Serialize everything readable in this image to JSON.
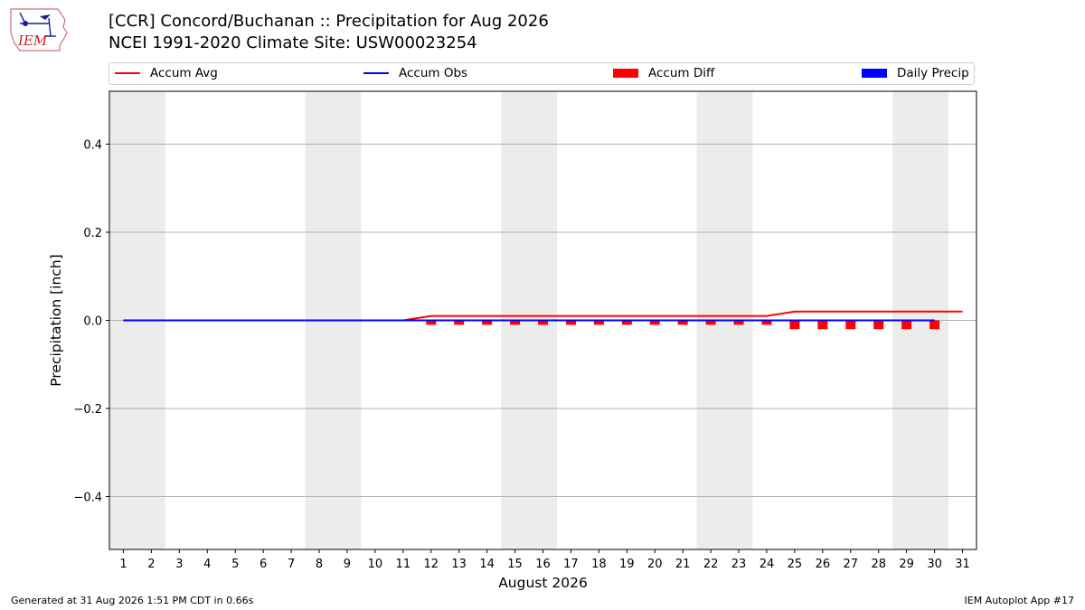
{
  "header": {
    "title_line1": "[CCR] Concord/Buchanan :: Precipitation for Aug 2026",
    "title_line2": "NCEI 1991-2020 Climate Site: USW00023254",
    "logo_text": "IEM"
  },
  "footer": {
    "left": "Generated at 31 Aug 2026 1:51 PM CDT in 0.66s",
    "right": "IEM Autoplot App #17"
  },
  "colors": {
    "accum_avg": "#ff0000",
    "accum_obs": "#0000ff",
    "accum_diff": "#ff0000",
    "daily_precip": "#0000ff",
    "weekend_shade": "#ececec",
    "grid": "#b0b0b0"
  },
  "chart_data": {
    "type": "line",
    "title": "[CCR] Concord/Buchanan :: Precipitation for Aug 2026",
    "subtitle": "NCEI 1991-2020 Climate Site: USW00023254",
    "xlabel": "August 2026",
    "ylabel": "Precipitation [inch]",
    "xlim": [
      0.5,
      31.5
    ],
    "ylim": [
      -0.52,
      0.52
    ],
    "yticks": [
      -0.4,
      -0.2,
      0.0,
      0.2,
      0.4
    ],
    "ytick_labels": [
      "−0.4",
      "−0.2",
      "0.0",
      "0.2",
      "0.4"
    ],
    "x": [
      1,
      2,
      3,
      4,
      5,
      6,
      7,
      8,
      9,
      10,
      11,
      12,
      13,
      14,
      15,
      16,
      17,
      18,
      19,
      20,
      21,
      22,
      23,
      24,
      25,
      26,
      27,
      28,
      29,
      30,
      31
    ],
    "weekend_spans": [
      [
        0.5,
        2.5
      ],
      [
        7.5,
        9.5
      ],
      [
        14.5,
        16.5
      ],
      [
        21.5,
        23.5
      ],
      [
        28.5,
        30.5
      ]
    ],
    "grid": "horizontal",
    "legend_position": "top",
    "legend": [
      "Accum Avg",
      "Accum Obs",
      "Accum Diff",
      "Daily Precip"
    ],
    "series": [
      {
        "name": "Accum Avg",
        "kind": "line",
        "x": [
          1,
          2,
          3,
          4,
          5,
          6,
          7,
          8,
          9,
          10,
          11,
          12,
          13,
          14,
          15,
          16,
          17,
          18,
          19,
          20,
          21,
          22,
          23,
          24,
          25,
          26,
          27,
          28,
          29,
          30,
          31
        ],
        "values": [
          0,
          0,
          0,
          0,
          0,
          0,
          0,
          0,
          0,
          0,
          0,
          0.01,
          0.01,
          0.01,
          0.01,
          0.01,
          0.01,
          0.01,
          0.01,
          0.01,
          0.01,
          0.01,
          0.01,
          0.01,
          0.02,
          0.02,
          0.02,
          0.02,
          0.02,
          0.02,
          0.02
        ]
      },
      {
        "name": "Accum Obs",
        "kind": "line",
        "x": [
          1,
          2,
          3,
          4,
          5,
          6,
          7,
          8,
          9,
          10,
          11,
          12,
          13,
          14,
          15,
          16,
          17,
          18,
          19,
          20,
          21,
          22,
          23,
          24,
          25,
          26,
          27,
          28,
          29,
          30
        ],
        "values": [
          0,
          0,
          0,
          0,
          0,
          0,
          0,
          0,
          0,
          0,
          0,
          0,
          0,
          0,
          0,
          0,
          0,
          0,
          0,
          0,
          0,
          0,
          0,
          0,
          0,
          0,
          0,
          0,
          0,
          0
        ]
      },
      {
        "name": "Accum Diff",
        "kind": "bar",
        "x": [
          1,
          2,
          3,
          4,
          5,
          6,
          7,
          8,
          9,
          10,
          11,
          12,
          13,
          14,
          15,
          16,
          17,
          18,
          19,
          20,
          21,
          22,
          23,
          24,
          25,
          26,
          27,
          28,
          29,
          30
        ],
        "values": [
          0,
          0,
          0,
          0,
          0,
          0,
          0,
          0,
          0,
          0,
          0,
          -0.01,
          -0.01,
          -0.01,
          -0.01,
          -0.01,
          -0.01,
          -0.01,
          -0.01,
          -0.01,
          -0.01,
          -0.01,
          -0.01,
          -0.01,
          -0.02,
          -0.02,
          -0.02,
          -0.02,
          -0.02,
          -0.02
        ]
      },
      {
        "name": "Daily Precip",
        "kind": "bar",
        "x": [
          1,
          2,
          3,
          4,
          5,
          6,
          7,
          8,
          9,
          10,
          11,
          12,
          13,
          14,
          15,
          16,
          17,
          18,
          19,
          20,
          21,
          22,
          23,
          24,
          25,
          26,
          27,
          28,
          29,
          30
        ],
        "values": [
          0,
          0,
          0,
          0,
          0,
          0,
          0,
          0,
          0,
          0,
          0,
          0,
          0,
          0,
          0,
          0,
          0,
          0,
          0,
          0,
          0,
          0,
          0,
          0,
          0,
          0,
          0,
          0,
          0,
          0
        ]
      }
    ]
  }
}
